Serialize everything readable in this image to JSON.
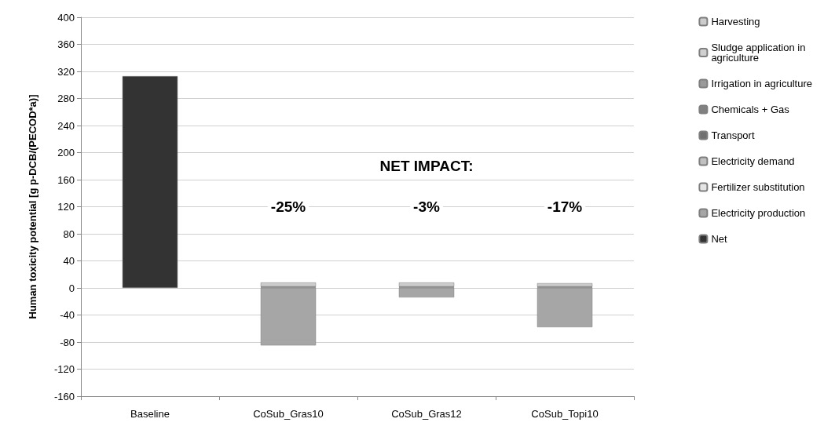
{
  "chart_data": {
    "type": "bar",
    "stacked": true,
    "ylabel": "Human toxicity potential [g p-DCB/(PECOD*a)]",
    "categories": [
      "Baseline",
      "CoSub_Gras10",
      "CoSub_Gras12",
      "CoSub_Topi10"
    ],
    "series": [
      {
        "name": "Net",
        "color": "#333333",
        "values": [
          313,
          null,
          null,
          null
        ]
      },
      {
        "name": "Electricity production",
        "color": "#a6a6a6",
        "values": [
          null,
          -85,
          -14,
          -58
        ]
      },
      {
        "name": "Fertilizer substitution",
        "color": "#e6e6e6",
        "values": [
          null,
          null,
          null,
          null
        ]
      },
      {
        "name": "Electricity demand",
        "color": "#c0c0c0",
        "values": [
          null,
          null,
          null,
          null
        ]
      },
      {
        "name": "Transport",
        "color": "#707070",
        "values": [
          null,
          1,
          1,
          1
        ]
      },
      {
        "name": "Chemicals + Gas",
        "color": "#808080",
        "values": [
          null,
          1,
          1,
          1
        ]
      },
      {
        "name": "Irrigation in agriculture",
        "color": "#999999",
        "values": [
          null,
          null,
          null,
          null
        ]
      },
      {
        "name": "Sludge application in agriculture",
        "color": "#d0d0d0",
        "values": [
          null,
          null,
          null,
          null
        ]
      },
      {
        "name": "Harvesting",
        "color": "#cccccc",
        "values": [
          null,
          6,
          6,
          5
        ]
      }
    ],
    "ylim": [
      -160,
      400
    ],
    "yticks": [
      -160,
      -120,
      -80,
      -40,
      0,
      40,
      80,
      120,
      160,
      200,
      240,
      280,
      320,
      360,
      400
    ],
    "grid": "y",
    "legend": "right",
    "annotations": [
      "NET IMPACT:",
      "-25%",
      "-3%",
      "-17%"
    ]
  }
}
